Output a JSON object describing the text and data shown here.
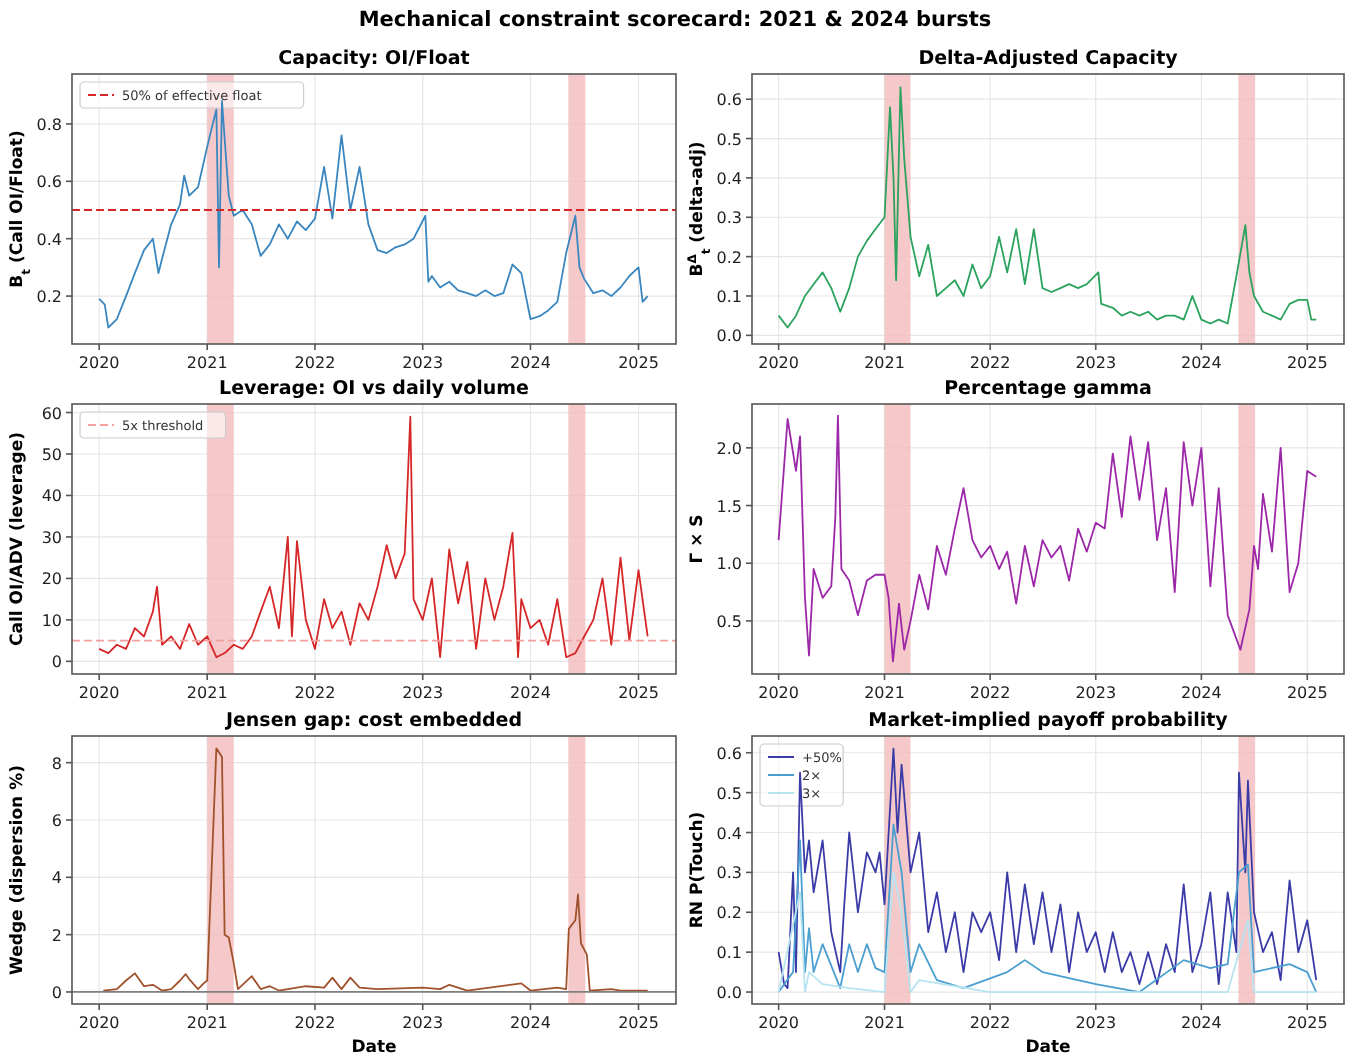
{
  "chart_data": [
    {
      "type": "other",
      "title": "Mechanical constraint scorecard: 2021 & 2024 bursts"
    },
    {
      "type": "line",
      "title": "Capacity: OI/Float",
      "ylabel": "B$_{t}$ (Call OI/Float)",
      "xlim": [
        "2019-10-01",
        "2025-05-08"
      ],
      "xticks": [
        "2020",
        "2021",
        "2022",
        "2023",
        "2024",
        "2025"
      ],
      "ylim": [
        0.033,
        0.974
      ],
      "yticks": [
        0.2,
        0.4,
        0.6,
        0.8
      ],
      "grid": true,
      "legend": "top left",
      "ref_lines": [
        {
          "axis": "y",
          "value": 0.5,
          "label": "50% of effective float",
          "color": "#d62728",
          "line_style": "dashed"
        }
      ],
      "bands": [
        {
          "axis": "x",
          "from": "2021-01-01",
          "to": "2021-04-01",
          "color": "#f3bcbc"
        },
        {
          "axis": "x",
          "from": "2024-05-08",
          "to": "2024-07-05",
          "color": "#f3bcbc"
        }
      ],
      "series": [
        {
          "color": "#3a87c0",
          "x": [
            "2020-01-01",
            "2020-01-20",
            "2020-02-01",
            "2020-03-01",
            "2020-04-01",
            "2020-05-01",
            "2020-06-01",
            "2020-07-01",
            "2020-07-20",
            "2020-08-01",
            "2020-09-01",
            "2020-10-01",
            "2020-10-15",
            "2020-11-01",
            "2020-12-01",
            "2021-01-01",
            "2021-01-15",
            "2021-02-01",
            "2021-02-10",
            "2021-02-20",
            "2021-03-01",
            "2021-03-15",
            "2021-04-01",
            "2021-05-01",
            "2021-06-01",
            "2021-07-01",
            "2021-08-01",
            "2021-09-01",
            "2021-10-01",
            "2021-11-01",
            "2021-12-01",
            "2022-01-01",
            "2022-02-01",
            "2022-03-01",
            "2022-04-01",
            "2022-05-01",
            "2022-06-01",
            "2022-07-01",
            "2022-08-01",
            "2022-09-01",
            "2022-10-01",
            "2022-11-01",
            "2022-12-01",
            "2023-01-10",
            "2023-01-20",
            "2023-02-01",
            "2023-03-01",
            "2023-04-01",
            "2023-05-01",
            "2023-06-01",
            "2023-07-01",
            "2023-08-01",
            "2023-09-01",
            "2023-10-01",
            "2023-11-01",
            "2023-12-01",
            "2024-01-01",
            "2024-02-01",
            "2024-03-01",
            "2024-04-01",
            "2024-05-01",
            "2024-06-01",
            "2024-06-15",
            "2024-07-01",
            "2024-08-01",
            "2024-09-01",
            "2024-10-01",
            "2024-11-01",
            "2024-12-01",
            "2025-01-01",
            "2025-01-15",
            "2025-02-01"
          ],
          "values": [
            0.19,
            0.17,
            0.09,
            0.12,
            0.2,
            0.28,
            0.36,
            0.4,
            0.28,
            0.33,
            0.45,
            0.52,
            0.62,
            0.55,
            0.58,
            0.72,
            0.78,
            0.85,
            0.3,
            0.88,
            0.75,
            0.55,
            0.48,
            0.5,
            0.45,
            0.34,
            0.38,
            0.45,
            0.4,
            0.46,
            0.43,
            0.47,
            0.65,
            0.47,
            0.76,
            0.5,
            0.65,
            0.45,
            0.36,
            0.35,
            0.37,
            0.38,
            0.4,
            0.48,
            0.25,
            0.27,
            0.23,
            0.25,
            0.22,
            0.21,
            0.2,
            0.22,
            0.2,
            0.21,
            0.31,
            0.28,
            0.12,
            0.13,
            0.15,
            0.18,
            0.35,
            0.48,
            0.3,
            0.26,
            0.21,
            0.22,
            0.2,
            0.23,
            0.27,
            0.3,
            0.18,
            0.2
          ]
        }
      ]
    },
    {
      "type": "line",
      "title": "Delta-Adjusted Capacity",
      "ylabel": "B$^{Δ}$$_{t}$ (delta-adj)",
      "xlim": [
        "2019-10-01",
        "2025-05-08"
      ],
      "xticks": [
        "2020",
        "2021",
        "2022",
        "2023",
        "2024",
        "2025"
      ],
      "ylim": [
        -0.022,
        0.664
      ],
      "yticks": [
        {
          "value": 0,
          "label": "0.0"
        },
        0.1,
        0.2,
        0.3,
        0.4,
        0.5,
        0.6
      ],
      "grid": true,
      "bands": [
        {
          "axis": "x",
          "from": "2021-01-01",
          "to": "2021-04-01",
          "color": "#f3bcbc"
        },
        {
          "axis": "x",
          "from": "2024-05-08",
          "to": "2024-07-05",
          "color": "#f3bcbc"
        }
      ],
      "series": [
        {
          "color": "#2ca25f",
          "x": [
            "2020-01-01",
            "2020-02-01",
            "2020-03-01",
            "2020-04-01",
            "2020-05-01",
            "2020-06-01",
            "2020-07-01",
            "2020-08-01",
            "2020-09-01",
            "2020-10-01",
            "2020-11-01",
            "2020-12-01",
            "2021-01-01",
            "2021-01-20",
            "2021-02-01",
            "2021-02-10",
            "2021-02-25",
            "2021-03-10",
            "2021-04-01",
            "2021-05-01",
            "2021-06-01",
            "2021-07-01",
            "2021-08-01",
            "2021-09-01",
            "2021-10-01",
            "2021-11-01",
            "2021-12-01",
            "2022-01-01",
            "2022-02-01",
            "2022-03-01",
            "2022-04-01",
            "2022-05-01",
            "2022-06-01",
            "2022-07-01",
            "2022-08-01",
            "2022-09-01",
            "2022-10-01",
            "2022-11-01",
            "2022-12-01",
            "2023-01-10",
            "2023-01-20",
            "2023-03-01",
            "2023-04-01",
            "2023-05-01",
            "2023-06-01",
            "2023-07-01",
            "2023-08-01",
            "2023-09-01",
            "2023-10-01",
            "2023-11-01",
            "2023-12-01",
            "2024-01-01",
            "2024-02-01",
            "2024-03-01",
            "2024-04-01",
            "2024-05-01",
            "2024-06-01",
            "2024-06-15",
            "2024-07-01",
            "2024-08-01",
            "2024-09-01",
            "2024-10-01",
            "2024-11-01",
            "2024-12-01",
            "2025-01-01",
            "2025-01-15",
            "2025-02-01"
          ],
          "values": [
            0.05,
            0.02,
            0.05,
            0.1,
            0.13,
            0.16,
            0.12,
            0.06,
            0.12,
            0.2,
            0.24,
            0.27,
            0.3,
            0.58,
            0.4,
            0.14,
            0.63,
            0.45,
            0.25,
            0.15,
            0.23,
            0.1,
            0.12,
            0.14,
            0.1,
            0.18,
            0.12,
            0.15,
            0.25,
            0.16,
            0.27,
            0.13,
            0.27,
            0.12,
            0.11,
            0.12,
            0.13,
            0.12,
            0.13,
            0.16,
            0.08,
            0.07,
            0.05,
            0.06,
            0.05,
            0.06,
            0.04,
            0.05,
            0.05,
            0.04,
            0.1,
            0.04,
            0.03,
            0.04,
            0.03,
            0.15,
            0.28,
            0.16,
            0.1,
            0.06,
            0.05,
            0.04,
            0.08,
            0.09,
            0.09,
            0.04,
            0.04
          ]
        }
      ]
    },
    {
      "type": "line",
      "title": "Leverage: OI vs daily volume",
      "ylabel": "Call OI/ADV (leverage)",
      "xlim": [
        "2019-10-01",
        "2025-05-08"
      ],
      "xticks": [
        "2020",
        "2021",
        "2022",
        "2023",
        "2024",
        "2025"
      ],
      "ylim": [
        -3.05,
        62.06
      ],
      "yticks": [
        0,
        10,
        20,
        30,
        40,
        50,
        60
      ],
      "grid": true,
      "legend": "top left",
      "ref_lines": [
        {
          "axis": "y",
          "value": 5,
          "label": "5x threshold",
          "color": "#f2a0a0",
          "line_style": "dashed"
        }
      ],
      "bands": [
        {
          "axis": "x",
          "from": "2021-01-01",
          "to": "2021-04-01",
          "color": "#f3bcbc"
        },
        {
          "axis": "x",
          "from": "2024-05-08",
          "to": "2024-07-05",
          "color": "#f3bcbc"
        }
      ],
      "series": [
        {
          "color": "#d62728",
          "x": [
            "2020-01-01",
            "2020-02-01",
            "2020-03-01",
            "2020-04-01",
            "2020-05-01",
            "2020-06-01",
            "2020-07-01",
            "2020-07-15",
            "2020-08-01",
            "2020-09-01",
            "2020-10-01",
            "2020-11-01",
            "2020-12-01",
            "2021-01-01",
            "2021-02-01",
            "2021-03-01",
            "2021-04-01",
            "2021-05-01",
            "2021-06-01",
            "2021-07-01",
            "2021-08-01",
            "2021-09-01",
            "2021-10-01",
            "2021-10-15",
            "2021-11-01",
            "2021-12-01",
            "2022-01-01",
            "2022-02-01",
            "2022-03-01",
            "2022-04-01",
            "2022-05-01",
            "2022-06-01",
            "2022-07-01",
            "2022-08-01",
            "2022-09-01",
            "2022-10-01",
            "2022-11-01",
            "2022-11-20",
            "2022-12-01",
            "2023-01-01",
            "2023-02-01",
            "2023-03-01",
            "2023-04-01",
            "2023-05-01",
            "2023-06-01",
            "2023-07-01",
            "2023-08-01",
            "2023-09-01",
            "2023-10-01",
            "2023-11-01",
            "2023-11-20",
            "2023-12-01",
            "2024-01-01",
            "2024-02-01",
            "2024-03-01",
            "2024-04-01",
            "2024-05-01",
            "2024-06-01",
            "2024-07-01",
            "2024-08-01",
            "2024-09-01",
            "2024-10-01",
            "2024-11-01",
            "2024-12-01",
            "2025-01-01",
            "2025-02-01"
          ],
          "values": [
            3,
            2,
            4,
            3,
            8,
            6,
            12,
            18,
            4,
            6,
            3,
            9,
            4,
            6,
            1,
            2,
            4,
            3,
            6,
            12,
            18,
            8,
            30,
            6,
            29,
            10,
            3,
            15,
            8,
            12,
            4,
            14,
            10,
            18,
            28,
            20,
            26,
            59,
            15,
            10,
            20,
            1,
            27,
            14,
            24,
            3,
            20,
            10,
            18,
            31,
            1,
            15,
            8,
            10,
            4,
            15,
            1,
            2,
            6,
            10,
            20,
            4,
            25,
            5,
            22,
            6
          ]
        }
      ]
    },
    {
      "type": "line",
      "title": "Percentage gamma",
      "ylabel": "Γ × S",
      "xlim": [
        "2019-10-01",
        "2025-05-08"
      ],
      "xticks": [
        "2020",
        "2021",
        "2022",
        "2023",
        "2024",
        "2025"
      ],
      "ylim": [
        0.04,
        2.38
      ],
      "yticks": [
        0.5,
        {
          "value": 1,
          "label": "1.0"
        },
        1.5,
        {
          "value": 2,
          "label": "2.0"
        }
      ],
      "grid": true,
      "bands": [
        {
          "axis": "x",
          "from": "2021-01-01",
          "to": "2021-04-01",
          "color": "#f3bcbc"
        },
        {
          "axis": "x",
          "from": "2024-05-08",
          "to": "2024-07-05",
          "color": "#f3bcbc"
        }
      ],
      "series": [
        {
          "color": "#9c27a8",
          "x": [
            "2020-01-01",
            "2020-02-01",
            "2020-03-01",
            "2020-03-15",
            "2020-04-01",
            "2020-04-15",
            "2020-05-01",
            "2020-06-01",
            "2020-07-01",
            "2020-07-15",
            "2020-07-24",
            "2020-08-05",
            "2020-09-01",
            "2020-10-01",
            "2020-11-01",
            "2020-12-01",
            "2021-01-01",
            "2021-01-15",
            "2021-01-30",
            "2021-02-20",
            "2021-03-10",
            "2021-04-01",
            "2021-05-01",
            "2021-06-01",
            "2021-07-01",
            "2021-08-01",
            "2021-09-01",
            "2021-10-01",
            "2021-11-01",
            "2021-12-01",
            "2022-01-01",
            "2022-02-01",
            "2022-03-01",
            "2022-04-01",
            "2022-05-01",
            "2022-06-01",
            "2022-07-01",
            "2022-08-01",
            "2022-09-01",
            "2022-10-01",
            "2022-11-01",
            "2022-12-01",
            "2023-01-01",
            "2023-02-01",
            "2023-03-01",
            "2023-04-01",
            "2023-05-01",
            "2023-06-01",
            "2023-07-01",
            "2023-08-01",
            "2023-09-01",
            "2023-10-01",
            "2023-11-01",
            "2023-12-01",
            "2024-01-01",
            "2024-02-01",
            "2024-03-01",
            "2024-04-01",
            "2024-05-15",
            "2024-06-15",
            "2024-07-01",
            "2024-07-15",
            "2024-08-01",
            "2024-09-01",
            "2024-10-01",
            "2024-11-01",
            "2024-12-01",
            "2025-01-01",
            "2025-02-01"
          ],
          "values": [
            1.2,
            2.25,
            1.8,
            2.1,
            0.7,
            0.2,
            0.95,
            0.7,
            0.8,
            1.4,
            2.28,
            0.95,
            0.85,
            0.55,
            0.85,
            0.9,
            0.9,
            0.7,
            0.15,
            0.65,
            0.25,
            0.5,
            0.9,
            0.6,
            1.15,
            0.9,
            1.3,
            1.65,
            1.2,
            1.05,
            1.15,
            0.95,
            1.1,
            0.65,
            1.15,
            0.8,
            1.2,
            1.05,
            1.15,
            0.85,
            1.3,
            1.1,
            1.35,
            1.3,
            1.95,
            1.4,
            2.1,
            1.55,
            2.05,
            1.2,
            1.65,
            0.75,
            2.05,
            1.5,
            2.0,
            0.8,
            1.65,
            0.55,
            0.25,
            0.6,
            1.15,
            0.95,
            1.6,
            1.1,
            2.0,
            0.75,
            1.0,
            1.8,
            1.75
          ]
        }
      ]
    },
    {
      "type": "line",
      "title": "Jensen gap: cost embedded",
      "xlabel": "Date",
      "ylabel": "Wedge (dispersion %)",
      "xlim": [
        "2019-10-01",
        "2025-05-08"
      ],
      "xticks": [
        "2020",
        "2021",
        "2022",
        "2023",
        "2024",
        "2025"
      ],
      "ylim": [
        -0.42,
        8.93
      ],
      "yticks": [
        0,
        2,
        4,
        6,
        8
      ],
      "grid": true,
      "ref_lines": [
        {
          "axis": "y",
          "value": 0,
          "color": "#808080",
          "line_style": "solid"
        }
      ],
      "bands": [
        {
          "axis": "x",
          "from": "2021-01-01",
          "to": "2021-04-01",
          "color": "#f3bcbc"
        },
        {
          "axis": "x",
          "from": "2024-05-08",
          "to": "2024-07-05",
          "color": "#f3bcbc"
        }
      ],
      "series": [
        {
          "color": "#a0522d",
          "x": [
            "2020-01-15",
            "2020-03-01",
            "2020-04-01",
            "2020-05-01",
            "2020-06-01",
            "2020-07-01",
            "2020-08-01",
            "2020-09-01",
            "2020-10-01",
            "2020-10-20",
            "2020-11-01",
            "2020-12-01",
            "2020-12-20",
            "2021-01-01",
            "2021-01-15",
            "2021-02-01",
            "2021-02-20",
            "2021-03-01",
            "2021-03-15",
            "2021-04-01",
            "2021-04-15",
            "2021-06-01",
            "2021-07-01",
            "2021-08-01",
            "2021-09-01",
            "2021-12-01",
            "2022-02-01",
            "2022-03-01",
            "2022-04-01",
            "2022-05-01",
            "2022-06-01",
            "2022-08-01",
            "2023-01-01",
            "2023-03-01",
            "2023-04-01",
            "2023-06-01",
            "2023-12-01",
            "2024-01-01",
            "2024-04-01",
            "2024-05-01",
            "2024-05-10",
            "2024-06-01",
            "2024-06-10",
            "2024-06-20",
            "2024-07-10",
            "2024-07-20",
            "2024-10-01",
            "2024-11-01",
            "2025-02-01"
          ],
          "values": [
            0.05,
            0.1,
            0.4,
            0.65,
            0.2,
            0.25,
            0.05,
            0.1,
            0.4,
            0.62,
            0.45,
            0.1,
            0.3,
            0.4,
            4,
            8.5,
            8.2,
            2,
            1.9,
            1,
            0.1,
            0.55,
            0.1,
            0.2,
            0.05,
            0.2,
            0.15,
            0.5,
            0.1,
            0.5,
            0.15,
            0.1,
            0.15,
            0.1,
            0.25,
            0.05,
            0.3,
            0.05,
            0.15,
            0.1,
            2.2,
            2.5,
            3.4,
            1.7,
            1.3,
            0.05,
            0.1,
            0.05,
            0.05
          ]
        }
      ]
    },
    {
      "type": "line",
      "title": "Market-implied payoff probability",
      "xlabel": "Date",
      "ylabel": "RN P(Touch)",
      "xlim": [
        "2019-10-01",
        "2025-05-08"
      ],
      "xticks": [
        "2020",
        "2021",
        "2022",
        "2023",
        "2024",
        "2025"
      ],
      "ylim": [
        -0.03,
        0.642
      ],
      "yticks": [
        {
          "value": 0,
          "label": "0.0"
        },
        0.1,
        0.2,
        0.3,
        0.4,
        0.5,
        0.6
      ],
      "grid": true,
      "legend": "top left",
      "bands": [
        {
          "axis": "x",
          "from": "2021-01-01",
          "to": "2021-04-01",
          "color": "#f3bcbc"
        },
        {
          "axis": "x",
          "from": "2024-05-08",
          "to": "2024-07-05",
          "color": "#f3bcbc"
        }
      ],
      "series": [
        {
          "name": "+50%",
          "color": "#3b3ba8",
          "x": [
            "2020-01-01",
            "2020-01-20",
            "2020-02-01",
            "2020-02-20",
            "2020-03-01",
            "2020-03-15",
            "2020-04-01",
            "2020-04-15",
            "2020-05-01",
            "2020-06-01",
            "2020-07-01",
            "2020-08-01",
            "2020-08-15",
            "2020-09-01",
            "2020-10-01",
            "2020-11-01",
            "2020-12-01",
            "2020-12-15",
            "2021-01-01",
            "2021-02-01",
            "2021-02-15",
            "2021-03-01",
            "2021-04-01",
            "2021-05-01",
            "2021-06-01",
            "2021-07-01",
            "2021-08-01",
            "2021-09-01",
            "2021-10-01",
            "2021-11-01",
            "2021-12-01",
            "2022-01-01",
            "2022-02-01",
            "2022-03-01",
            "2022-04-01",
            "2022-05-01",
            "2022-06-01",
            "2022-07-01",
            "2022-08-01",
            "2022-09-01",
            "2022-10-01",
            "2022-11-01",
            "2022-12-01",
            "2023-01-01",
            "2023-02-01",
            "2023-03-01",
            "2023-04-01",
            "2023-05-01",
            "2023-06-01",
            "2023-07-01",
            "2023-08-01",
            "2023-09-01",
            "2023-10-01",
            "2023-11-01",
            "2023-12-01",
            "2024-01-01",
            "2024-02-01",
            "2024-03-01",
            "2024-04-01",
            "2024-05-01",
            "2024-05-10",
            "2024-06-01",
            "2024-06-10",
            "2024-07-01",
            "2024-08-01",
            "2024-09-01",
            "2024-10-01",
            "2024-11-01",
            "2024-12-01",
            "2025-01-01",
            "2025-02-01"
          ],
          "values": [
            0.1,
            0.02,
            0.01,
            0.3,
            0.05,
            0.55,
            0.3,
            0.38,
            0.25,
            0.38,
            0.15,
            0.05,
            0.22,
            0.4,
            0.2,
            0.35,
            0.3,
            0.35,
            0.22,
            0.61,
            0.4,
            0.57,
            0.3,
            0.4,
            0.15,
            0.25,
            0.1,
            0.2,
            0.05,
            0.2,
            0.15,
            0.2,
            0.08,
            0.3,
            0.1,
            0.27,
            0.12,
            0.25,
            0.1,
            0.22,
            0.05,
            0.2,
            0.1,
            0.15,
            0.05,
            0.15,
            0.05,
            0.1,
            0.02,
            0.1,
            0.02,
            0.12,
            0.05,
            0.27,
            0.05,
            0.12,
            0.25,
            0.02,
            0.25,
            0.1,
            0.55,
            0.3,
            0.53,
            0.2,
            0.1,
            0.15,
            0.03,
            0.28,
            0.1,
            0.18,
            0.03
          ]
        },
        {
          "name": "2×",
          "color": "#4a9fd0",
          "x": [
            "2020-01-01",
            "2020-02-20",
            "2020-03-15",
            "2020-04-01",
            "2020-04-15",
            "2020-05-01",
            "2020-06-01",
            "2020-08-01",
            "2020-09-01",
            "2020-10-01",
            "2020-11-01",
            "2020-12-01",
            "2021-01-01",
            "2021-02-01",
            "2021-03-01",
            "2021-04-01",
            "2021-05-01",
            "2021-07-01",
            "2021-10-01",
            "2022-03-01",
            "2022-05-01",
            "2022-07-01",
            "2023-01-01",
            "2023-06-01",
            "2023-11-01",
            "2024-02-01",
            "2024-04-01",
            "2024-05-10",
            "2024-06-10",
            "2024-07-01",
            "2024-11-01",
            "2025-01-01",
            "2025-02-01"
          ],
          "values": [
            0,
            0.05,
            0.38,
            0.05,
            0.16,
            0.05,
            0.12,
            0.01,
            0.12,
            0.05,
            0.12,
            0.06,
            0.05,
            0.42,
            0.3,
            0.05,
            0.12,
            0.03,
            0.01,
            0.05,
            0.08,
            0.05,
            0.02,
            0,
            0.08,
            0.06,
            0.07,
            0.3,
            0.32,
            0.05,
            0.07,
            0.05,
            0
          ]
        },
        {
          "name": "3×",
          "color": "#b7e4f0",
          "x": [
            "2020-01-01",
            "2020-03-15",
            "2020-04-01",
            "2020-04-15",
            "2020-06-01",
            "2020-09-01",
            "2021-01-01",
            "2021-02-01",
            "2021-03-01",
            "2021-04-01",
            "2021-05-01",
            "2022-01-01",
            "2023-01-01",
            "2024-04-01",
            "2024-05-10",
            "2024-06-10",
            "2024-07-01",
            "2025-02-01"
          ],
          "values": [
            0,
            0.25,
            0,
            0.05,
            0.02,
            0.01,
            0,
            0.3,
            0.2,
            0,
            0.03,
            0,
            0,
            0,
            0.1,
            0.18,
            0,
            0
          ]
        }
      ]
    }
  ]
}
